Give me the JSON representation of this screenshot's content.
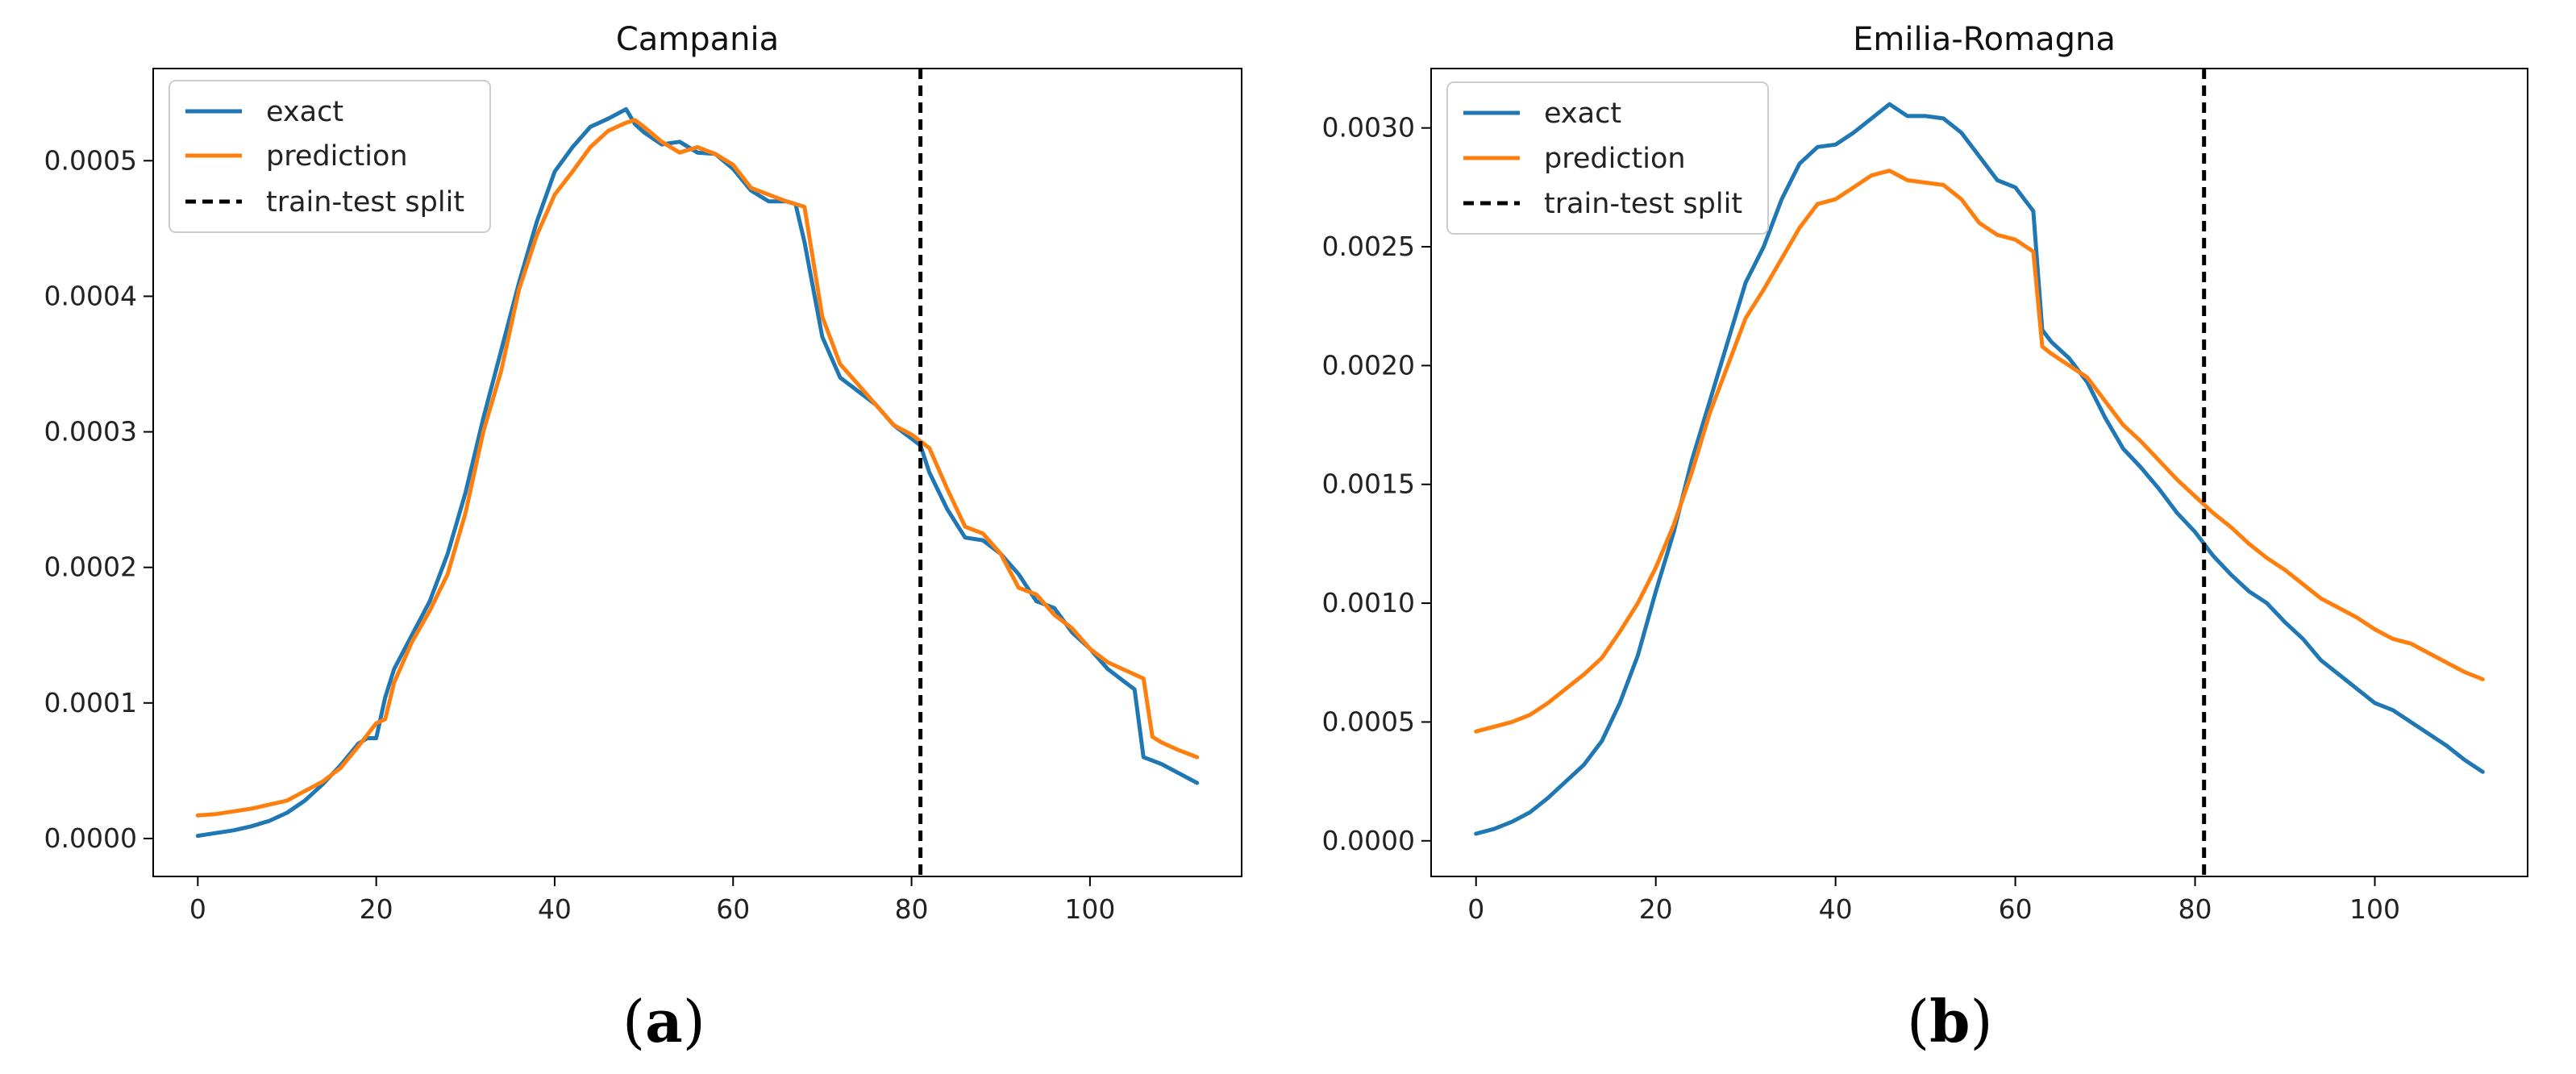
{
  "chart_data": [
    {
      "type": "line",
      "title": "Campania",
      "panel_label": "(a)",
      "panel_letter": "a",
      "xlabel": "",
      "ylabel": "",
      "xlim": [
        -5,
        117
      ],
      "ylim": [
        -2.8e-05,
        0.000568
      ],
      "xticks": [
        0,
        20,
        40,
        60,
        80,
        100
      ],
      "yticks": [
        0.0,
        0.0001,
        0.0002,
        0.0003,
        0.0004,
        0.0005
      ],
      "ytick_labels": [
        "0.0000",
        "0.0001",
        "0.0002",
        "0.0003",
        "0.0004",
        "0.0005"
      ],
      "split_x": 81,
      "legend": {
        "position": "top-left",
        "entries": [
          "exact",
          "prediction",
          "train-test split"
        ]
      },
      "colors": {
        "exact": "#1f77b4",
        "prediction": "#ff7f0e",
        "split": "#000000"
      },
      "series": [
        {
          "name": "exact",
          "x": [
            0,
            2,
            4,
            6,
            8,
            10,
            12,
            14,
            16,
            18,
            19,
            20,
            21,
            22,
            24,
            26,
            28,
            30,
            32,
            34,
            36,
            38,
            40,
            42,
            44,
            46,
            48,
            49,
            50,
            52,
            54,
            56,
            58,
            60,
            62,
            64,
            66,
            67,
            68,
            70,
            72,
            74,
            76,
            78,
            80,
            81,
            82,
            84,
            86,
            88,
            90,
            92,
            94,
            96,
            98,
            100,
            102,
            104,
            105,
            106,
            108,
            110,
            112
          ],
          "values": [
            2e-06,
            4e-06,
            6e-06,
            9e-06,
            1.3e-05,
            1.9e-05,
            2.8e-05,
            4e-05,
            5.4e-05,
            7e-05,
            7.4e-05,
            7.4e-05,
            0.000104,
            0.000125,
            0.00015,
            0.000175,
            0.00021,
            0.000255,
            0.00031,
            0.00036,
            0.00041,
            0.000455,
            0.000492,
            0.00051,
            0.000525,
            0.000531,
            0.000538,
            0.000527,
            0.000521,
            0.000512,
            0.000514,
            0.000506,
            0.000505,
            0.000494,
            0.000478,
            0.00047,
            0.00047,
            0.000468,
            0.00044,
            0.00037,
            0.00034,
            0.00033,
            0.00032,
            0.000305,
            0.000295,
            0.00029,
            0.00027,
            0.000243,
            0.000222,
            0.00022,
            0.00021,
            0.000195,
            0.000175,
            0.00017,
            0.000152,
            0.00014,
            0.000125,
            0.000115,
            0.00011,
            6e-05,
            5.5e-05,
            4.8e-05,
            4.1e-05
          ]
        },
        {
          "name": "prediction",
          "x": [
            0,
            2,
            4,
            6,
            8,
            10,
            12,
            14,
            16,
            18,
            20,
            21,
            22,
            24,
            26,
            28,
            30,
            32,
            34,
            36,
            38,
            40,
            42,
            44,
            46,
            48,
            49,
            50,
            52,
            54,
            56,
            58,
            60,
            62,
            64,
            66,
            68,
            70,
            72,
            74,
            76,
            78,
            80,
            82,
            84,
            86,
            88,
            90,
            92,
            94,
            96,
            98,
            100,
            102,
            104,
            106,
            107,
            108,
            110,
            112
          ],
          "values": [
            1.7e-05,
            1.8e-05,
            2e-05,
            2.2e-05,
            2.5e-05,
            2.8e-05,
            3.5e-05,
            4.2e-05,
            5.2e-05,
            6.8e-05,
            8.5e-05,
            8.8e-05,
            0.000115,
            0.000145,
            0.000168,
            0.000195,
            0.00024,
            0.0003,
            0.000345,
            0.000405,
            0.000445,
            0.000475,
            0.000492,
            0.00051,
            0.000522,
            0.000528,
            0.00053,
            0.000525,
            0.000514,
            0.000506,
            0.00051,
            0.000505,
            0.000497,
            0.00048,
            0.000475,
            0.00047,
            0.000466,
            0.000385,
            0.00035,
            0.000335,
            0.00032,
            0.000305,
            0.000298,
            0.000288,
            0.000258,
            0.00023,
            0.000225,
            0.00021,
            0.000185,
            0.00018,
            0.000165,
            0.000155,
            0.00014,
            0.00013,
            0.000124,
            0.000118,
            7.5e-05,
            7.1e-05,
            6.5e-05,
            6e-05
          ]
        }
      ]
    },
    {
      "type": "line",
      "title": "Emilia-Romagna",
      "panel_label": "(b)",
      "panel_letter": "b",
      "xlabel": "",
      "ylabel": "",
      "xlim": [
        -5,
        117
      ],
      "ylim": [
        -0.00015,
        0.00325
      ],
      "xticks": [
        0,
        20,
        40,
        60,
        80,
        100
      ],
      "yticks": [
        0.0,
        0.0005,
        0.001,
        0.0015,
        0.002,
        0.0025,
        0.003
      ],
      "ytick_labels": [
        "0.0000",
        "0.0005",
        "0.0010",
        "0.0015",
        "0.0020",
        "0.0025",
        "0.0030"
      ],
      "split_x": 81,
      "legend": {
        "position": "top-left",
        "entries": [
          "exact",
          "prediction",
          "train-test split"
        ]
      },
      "colors": {
        "exact": "#1f77b4",
        "prediction": "#ff7f0e",
        "split": "#000000"
      },
      "series": [
        {
          "name": "exact",
          "x": [
            0,
            2,
            4,
            6,
            8,
            10,
            12,
            14,
            16,
            18,
            20,
            22,
            24,
            26,
            28,
            30,
            32,
            34,
            36,
            38,
            40,
            42,
            44,
            46,
            48,
            50,
            52,
            54,
            56,
            58,
            60,
            62,
            63,
            64,
            66,
            68,
            70,
            72,
            74,
            76,
            78,
            80,
            82,
            84,
            86,
            88,
            90,
            92,
            94,
            96,
            98,
            100,
            102,
            104,
            106,
            108,
            110,
            112
          ],
          "values": [
            3e-05,
            5e-05,
            8e-05,
            0.00012,
            0.00018,
            0.00025,
            0.00032,
            0.00042,
            0.00058,
            0.00078,
            0.00105,
            0.0013,
            0.0016,
            0.00185,
            0.0021,
            0.00235,
            0.0025,
            0.0027,
            0.00285,
            0.00292,
            0.00293,
            0.00298,
            0.00304,
            0.0031,
            0.00305,
            0.00305,
            0.00304,
            0.00298,
            0.00288,
            0.00278,
            0.00275,
            0.00265,
            0.00215,
            0.0021,
            0.00203,
            0.00193,
            0.00178,
            0.00165,
            0.00157,
            0.00148,
            0.00138,
            0.0013,
            0.0012,
            0.00112,
            0.00105,
            0.001,
            0.00092,
            0.00085,
            0.00076,
            0.0007,
            0.00064,
            0.00058,
            0.00055,
            0.0005,
            0.00045,
            0.0004,
            0.00034,
            0.00029
          ]
        },
        {
          "name": "prediction",
          "x": [
            0,
            2,
            4,
            6,
            8,
            10,
            12,
            14,
            16,
            18,
            20,
            22,
            24,
            26,
            28,
            30,
            32,
            34,
            36,
            38,
            40,
            42,
            44,
            46,
            48,
            50,
            52,
            54,
            56,
            58,
            60,
            62,
            63,
            64,
            66,
            68,
            70,
            72,
            74,
            76,
            78,
            80,
            82,
            84,
            86,
            88,
            90,
            92,
            94,
            96,
            98,
            100,
            102,
            104,
            106,
            108,
            110,
            112
          ],
          "values": [
            0.00046,
            0.00048,
            0.0005,
            0.00053,
            0.00058,
            0.00064,
            0.0007,
            0.00077,
            0.00088,
            0.001,
            0.00115,
            0.00133,
            0.00155,
            0.0018,
            0.002,
            0.0022,
            0.00232,
            0.00245,
            0.00258,
            0.00268,
            0.0027,
            0.00275,
            0.0028,
            0.00282,
            0.00278,
            0.00277,
            0.00276,
            0.0027,
            0.0026,
            0.00255,
            0.00253,
            0.00248,
            0.00208,
            0.00205,
            0.002,
            0.00195,
            0.00185,
            0.00175,
            0.00168,
            0.0016,
            0.00152,
            0.00145,
            0.00138,
            0.00132,
            0.00125,
            0.00119,
            0.00114,
            0.00108,
            0.00102,
            0.00098,
            0.00094,
            0.00089,
            0.00085,
            0.00083,
            0.00079,
            0.00075,
            0.00071,
            0.00068
          ]
        }
      ]
    }
  ]
}
